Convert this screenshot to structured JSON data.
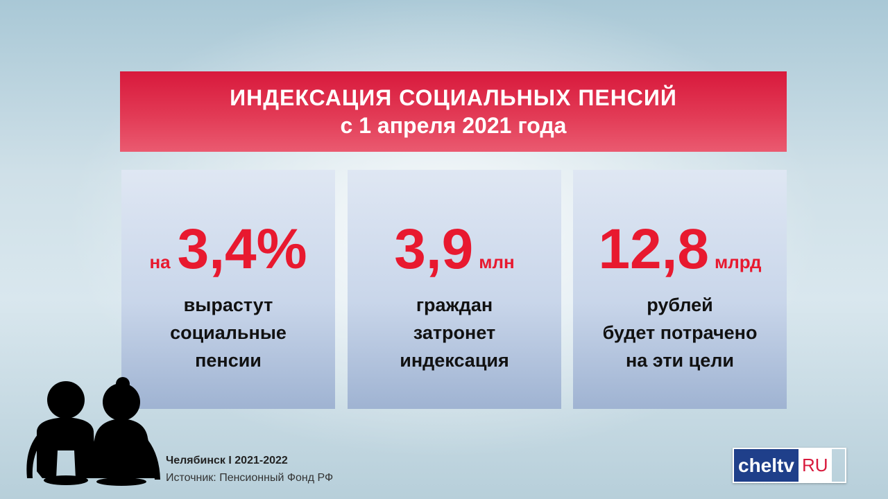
{
  "header": {
    "line1": "ИНДЕКСАЦИЯ СОЦИАЛЬНЫХ ПЕНСИЙ",
    "line2": "с 1 апреля 2021 года"
  },
  "cards": [
    {
      "prefix": "на",
      "value": "3,4%",
      "suffix": "",
      "desc": [
        "вырастут",
        "социальные",
        "пенсии"
      ]
    },
    {
      "prefix": "",
      "value": "3,9",
      "suffix": "млн",
      "desc": [
        "граждан",
        "затронет",
        "индексация"
      ]
    },
    {
      "prefix": "",
      "value": "12,8",
      "suffix": "млрд",
      "desc": [
        "рублей",
        "будет потрачено",
        "на эти цели"
      ]
    }
  ],
  "footer": {
    "city": "Челябинск I 2021-2022",
    "source": "Источник: Пенсионный Фонд РФ"
  },
  "logo": {
    "part1": "cheltv",
    "part2": "RU"
  },
  "colors": {
    "accent": "#e8192f",
    "banner": "#d8193c",
    "logo_blue": "#1f3f8a"
  },
  "icons": {
    "elders": "elderly-couple-icon"
  }
}
